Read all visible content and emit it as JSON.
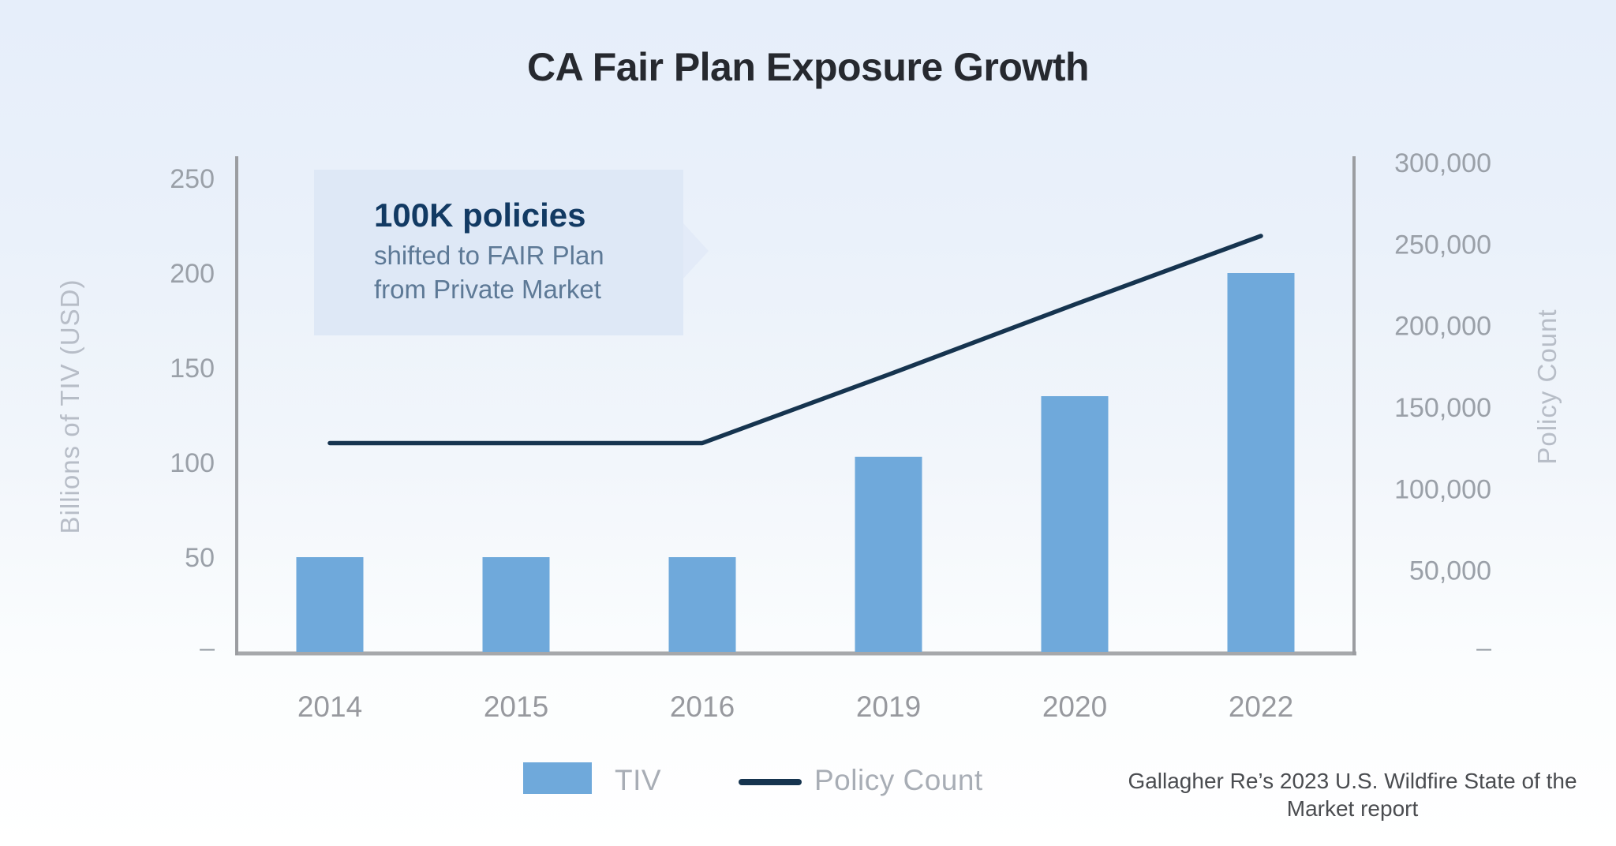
{
  "title": "CA Fair Plan Exposure Growth",
  "callout": {
    "headline": "100K policies",
    "body_line1": "shifted to FAIR Plan",
    "body_line2": "from Private Market"
  },
  "legend": {
    "items": [
      {
        "label": "TIV",
        "marker": "bar-swatch"
      },
      {
        "label": "Policy Count",
        "marker": "line-swatch"
      }
    ],
    "position": "bottom"
  },
  "source": {
    "line1": "Gallagher Re’s 2023 U.S. Wildfire State of the",
    "line2": "Market report"
  },
  "chart_data": {
    "type": "bar",
    "subtype": "bar-and-line-dual-axis",
    "title": "CA Fair Plan Exposure Growth",
    "categories": [
      "2014",
      "2015",
      "2016",
      "2019",
      "2020",
      "2022"
    ],
    "series": [
      {
        "name": "TIV",
        "type": "bar",
        "axis": "left",
        "values": [
          50,
          50,
          50,
          103,
          135,
          200
        ]
      },
      {
        "name": "Policy Count",
        "type": "line",
        "axis": "right",
        "values": [
          128000,
          128000,
          128000,
          170000,
          213000,
          255000
        ]
      }
    ],
    "left_axis": {
      "title": "Billions of TIV (USD)",
      "tick_values": [
        250,
        200,
        150,
        100,
        50
      ],
      "tick_labels": [
        "250",
        "200",
        "150",
        "100",
        "50"
      ],
      "zero_label": "–",
      "range": [
        0,
        250
      ]
    },
    "right_axis": {
      "title": "Policy Count",
      "tick_values": [
        300000,
        250000,
        200000,
        150000,
        100000,
        50000
      ],
      "tick_labels": [
        "300,000",
        "250,000",
        "200,000",
        "150,000",
        "100,000",
        "50,000"
      ],
      "zero_label": "–",
      "range": [
        0,
        300000
      ]
    },
    "grid": false,
    "colors": {
      "bar": "#6fa9db",
      "line": "#16344f",
      "axis": "#a6a8ab"
    }
  }
}
